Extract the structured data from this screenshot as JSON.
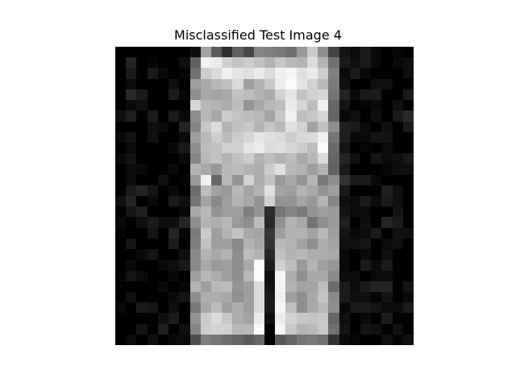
{
  "figure": {
    "title": "Misclassified Test Image 4"
  },
  "image": {
    "rows": 28,
    "cols": 28,
    "colormap": "gray",
    "pixels": [
      [
        0,
        0,
        0,
        0,
        0,
        0,
        0,
        6,
        64,
        36,
        18,
        38,
        28,
        52,
        50,
        48,
        44,
        60,
        80,
        56,
        26,
        8,
        4,
        10,
        4,
        0,
        2,
        0
      ],
      [
        0,
        14,
        0,
        2,
        0,
        0,
        6,
        38,
        95,
        92,
        82,
        76,
        80,
        76,
        70,
        78,
        72,
        70,
        86,
        70,
        44,
        10,
        6,
        10,
        4,
        0,
        4,
        6
      ],
      [
        0,
        10,
        0,
        10,
        4,
        0,
        2,
        44,
        80,
        86,
        94,
        90,
        88,
        92,
        86,
        94,
        96,
        88,
        92,
        80,
        50,
        4,
        10,
        4,
        0,
        0,
        0,
        6
      ],
      [
        0,
        4,
        0,
        0,
        0,
        6,
        0,
        62,
        66,
        72,
        76,
        86,
        62,
        70,
        78,
        92,
        98,
        90,
        82,
        72,
        48,
        6,
        0,
        0,
        6,
        6,
        0,
        0
      ],
      [
        0,
        16,
        10,
        0,
        0,
        10,
        2,
        56,
        66,
        64,
        66,
        76,
        74,
        70,
        66,
        82,
        90,
        76,
        82,
        84,
        46,
        14,
        4,
        10,
        10,
        0,
        0,
        10
      ],
      [
        0,
        4,
        6,
        0,
        0,
        0,
        0,
        84,
        72,
        70,
        68,
        74,
        58,
        66,
        72,
        74,
        92,
        84,
        74,
        94,
        40,
        8,
        0,
        2,
        4,
        0,
        6,
        0
      ],
      [
        6,
        12,
        0,
        10,
        0,
        10,
        4,
        56,
        72,
        66,
        80,
        76,
        74,
        72,
        64,
        78,
        94,
        74,
        78,
        84,
        40,
        4,
        6,
        0,
        6,
        0,
        10,
        16
      ],
      [
        0,
        0,
        0,
        6,
        4,
        0,
        14,
        52,
        78,
        86,
        70,
        76,
        78,
        70,
        78,
        72,
        88,
        82,
        64,
        76,
        56,
        12,
        10,
        4,
        0,
        6,
        0,
        10
      ],
      [
        4,
        8,
        0,
        6,
        0,
        0,
        4,
        62,
        72,
        80,
        74,
        80,
        84,
        90,
        88,
        86,
        80,
        84,
        86,
        94,
        46,
        12,
        4,
        4,
        8,
        8,
        0,
        0
      ],
      [
        0,
        4,
        0,
        0,
        0,
        4,
        10,
        56,
        74,
        76,
        82,
        82,
        90,
        92,
        86,
        88,
        84,
        80,
        74,
        98,
        42,
        8,
        0,
        2,
        0,
        4,
        0,
        0
      ],
      [
        4,
        8,
        0,
        0,
        0,
        0,
        4,
        52,
        72,
        76,
        70,
        76,
        80,
        70,
        74,
        70,
        74,
        66,
        72,
        86,
        40,
        14,
        6,
        0,
        8,
        4,
        6,
        10
      ],
      [
        0,
        4,
        4,
        0,
        0,
        4,
        0,
        70,
        66,
        60,
        72,
        74,
        70,
        68,
        80,
        88,
        72,
        70,
        62,
        70,
        38,
        10,
        0,
        0,
        0,
        2,
        6,
        6
      ],
      [
        0,
        4,
        0,
        0,
        6,
        0,
        2,
        60,
        94,
        40,
        72,
        58,
        82,
        68,
        76,
        60,
        66,
        58,
        70,
        48,
        56,
        20,
        10,
        10,
        4,
        0,
        0,
        0
      ],
      [
        0,
        10,
        14,
        8,
        0,
        4,
        0,
        42,
        74,
        64,
        60,
        72,
        64,
        70,
        88,
        64,
        62,
        70,
        66,
        58,
        62,
        10,
        0,
        0,
        0,
        12,
        6,
        0
      ],
      [
        6,
        14,
        0,
        4,
        0,
        10,
        6,
        46,
        64,
        54,
        62,
        70,
        66,
        58,
        82,
        58,
        58,
        64,
        60,
        70,
        52,
        6,
        4,
        10,
        4,
        10,
        6,
        0
      ],
      [
        0,
        8,
        12,
        0,
        0,
        0,
        4,
        66,
        72,
        58,
        62,
        62,
        50,
        58,
        18,
        46,
        52,
        48,
        58,
        62,
        60,
        8,
        4,
        4,
        0,
        0,
        8,
        0
      ],
      [
        4,
        0,
        6,
        10,
        6,
        6,
        14,
        56,
        70,
        68,
        72,
        60,
        56,
        74,
        16,
        56,
        70,
        66,
        46,
        56,
        60,
        12,
        0,
        6,
        0,
        14,
        10,
        0
      ],
      [
        2,
        0,
        0,
        8,
        0,
        14,
        2,
        48,
        80,
        62,
        70,
        76,
        66,
        64,
        22,
        62,
        70,
        70,
        64,
        72,
        62,
        8,
        4,
        4,
        10,
        0,
        6,
        6
      ],
      [
        0,
        8,
        0,
        0,
        0,
        10,
        0,
        50,
        76,
        62,
        62,
        54,
        70,
        66,
        20,
        72,
        70,
        64,
        56,
        68,
        64,
        6,
        6,
        8,
        0,
        4,
        6,
        0
      ],
      [
        0,
        0,
        4,
        8,
        0,
        0,
        6,
        54,
        70,
        66,
        70,
        56,
        74,
        70,
        16,
        76,
        70,
        72,
        68,
        68,
        66,
        4,
        0,
        4,
        0,
        6,
        0,
        0
      ],
      [
        0,
        4,
        0,
        0,
        4,
        6,
        10,
        54,
        66,
        60,
        62,
        56,
        66,
        98,
        12,
        82,
        74,
        60,
        70,
        62,
        58,
        4,
        0,
        10,
        4,
        10,
        0,
        0
      ],
      [
        2,
        8,
        4,
        0,
        0,
        4,
        0,
        62,
        72,
        68,
        62,
        56,
        72,
        98,
        6,
        96,
        68,
        56,
        66,
        66,
        54,
        4,
        4,
        0,
        4,
        4,
        0,
        0
      ],
      [
        0,
        0,
        0,
        0,
        4,
        0,
        2,
        70,
        62,
        72,
        74,
        58,
        62,
        86,
        8,
        96,
        70,
        64,
        64,
        74,
        42,
        10,
        4,
        10,
        14,
        14,
        0,
        8
      ],
      [
        0,
        6,
        0,
        0,
        0,
        4,
        8,
        56,
        68,
        68,
        66,
        56,
        62,
        86,
        10,
        94,
        62,
        56,
        66,
        76,
        54,
        10,
        6,
        6,
        2,
        8,
        0,
        4
      ],
      [
        4,
        0,
        10,
        8,
        0,
        6,
        0,
        48,
        66,
        74,
        62,
        68,
        62,
        86,
        10,
        96,
        74,
        56,
        66,
        72,
        56,
        4,
        10,
        10,
        8,
        4,
        4,
        10
      ],
      [
        0,
        0,
        0,
        0,
        6,
        10,
        0,
        58,
        80,
        86,
        78,
        68,
        64,
        92,
        6,
        92,
        82,
        78,
        76,
        78,
        40,
        6,
        0,
        4,
        0,
        10,
        0,
        0
      ],
      [
        0,
        0,
        8,
        0,
        12,
        0,
        6,
        52,
        80,
        82,
        82,
        72,
        72,
        98,
        0,
        96,
        78,
        70,
        72,
        78,
        44,
        8,
        0,
        8,
        6,
        0,
        6,
        0
      ],
      [
        0,
        4,
        0,
        6,
        0,
        4,
        4,
        30,
        50,
        46,
        42,
        40,
        36,
        40,
        0,
        34,
        40,
        46,
        48,
        44,
        20,
        4,
        2,
        0,
        0,
        6,
        2,
        6
      ]
    ]
  }
}
